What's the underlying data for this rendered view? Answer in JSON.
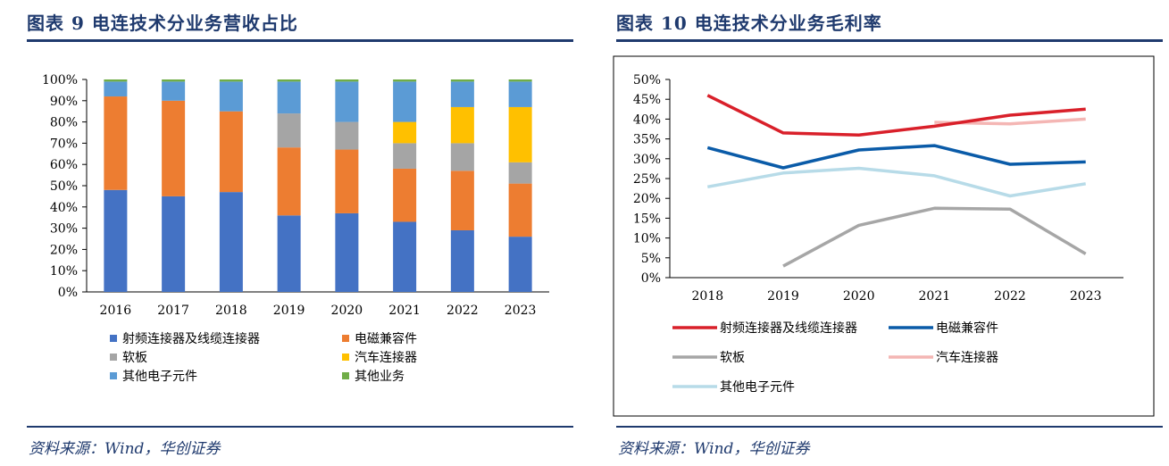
{
  "left": {
    "figure_title": "图表 9   电连技术分业务营收占比",
    "source": "资料来源：Wind，华创证券"
  },
  "right": {
    "figure_title": "图表 10   电连技术分业务毛利率",
    "source": "资料来源：Wind，华创证券"
  },
  "colors": {
    "title_blue": "#1f3a6e",
    "rf": "#4472c4",
    "emc": "#ed7d31",
    "soft_board": "#a5a5a5",
    "auto": "#ffc000",
    "other_elec": "#5b9bd5",
    "other_business": "#70ad47",
    "line_rf": "#d9202a",
    "line_emc": "#0a5ba8",
    "line_soft": "#a6a6a6",
    "line_auto": "#f4b6b4",
    "line_other": "#b7dbe8"
  },
  "chart_data": [
    {
      "type": "bar",
      "stacked": true,
      "categories": [
        "2016",
        "2017",
        "2018",
        "2019",
        "2020",
        "2021",
        "2022",
        "2023"
      ],
      "series": [
        {
          "name": "射频连接器及线缆连接器",
          "values": [
            48,
            45,
            47,
            36,
            37,
            33,
            29,
            26
          ]
        },
        {
          "name": "电磁兼容件",
          "values": [
            44,
            45,
            38,
            32,
            30,
            25,
            28,
            25
          ]
        },
        {
          "name": "软板",
          "values": [
            0,
            0,
            0,
            16,
            13,
            12,
            13,
            10
          ]
        },
        {
          "name": "汽车连接器",
          "values": [
            0,
            0,
            0,
            0,
            0,
            10,
            17,
            26
          ]
        },
        {
          "name": "其他电子元件",
          "values": [
            7,
            9,
            14,
            15,
            19,
            19,
            12,
            12
          ]
        },
        {
          "name": "其他业务",
          "values": [
            1,
            1,
            1,
            1,
            1,
            1,
            1,
            1
          ]
        }
      ],
      "yticks": [
        "0%",
        "10%",
        "20%",
        "30%",
        "40%",
        "50%",
        "60%",
        "70%",
        "80%",
        "90%",
        "100%"
      ],
      "ylim": [
        0,
        100
      ],
      "legend": "bottom"
    },
    {
      "type": "line",
      "categories": [
        "2018",
        "2019",
        "2020",
        "2021",
        "2022",
        "2023"
      ],
      "series": [
        {
          "name": "射频连接器及线缆连接器",
          "values": [
            46,
            36.5,
            36,
            38.2,
            41,
            42.5
          ]
        },
        {
          "name": "电磁兼容件",
          "values": [
            32.8,
            27.7,
            32.2,
            33.3,
            28.6,
            29.2
          ]
        },
        {
          "name": "软板",
          "values": [
            null,
            2.9,
            13.2,
            17.5,
            17.3,
            6
          ]
        },
        {
          "name": "汽车连接器",
          "values": [
            null,
            null,
            null,
            39.2,
            38.8,
            40
          ]
        },
        {
          "name": "其他电子元件",
          "values": [
            22.9,
            26.4,
            27.6,
            25.7,
            20.6,
            23.7
          ]
        }
      ],
      "yticks": [
        "0%",
        "5%",
        "10%",
        "15%",
        "20%",
        "25%",
        "30%",
        "35%",
        "40%",
        "45%",
        "50%"
      ],
      "ylim": [
        0,
        50
      ],
      "legend": "bottom"
    }
  ]
}
